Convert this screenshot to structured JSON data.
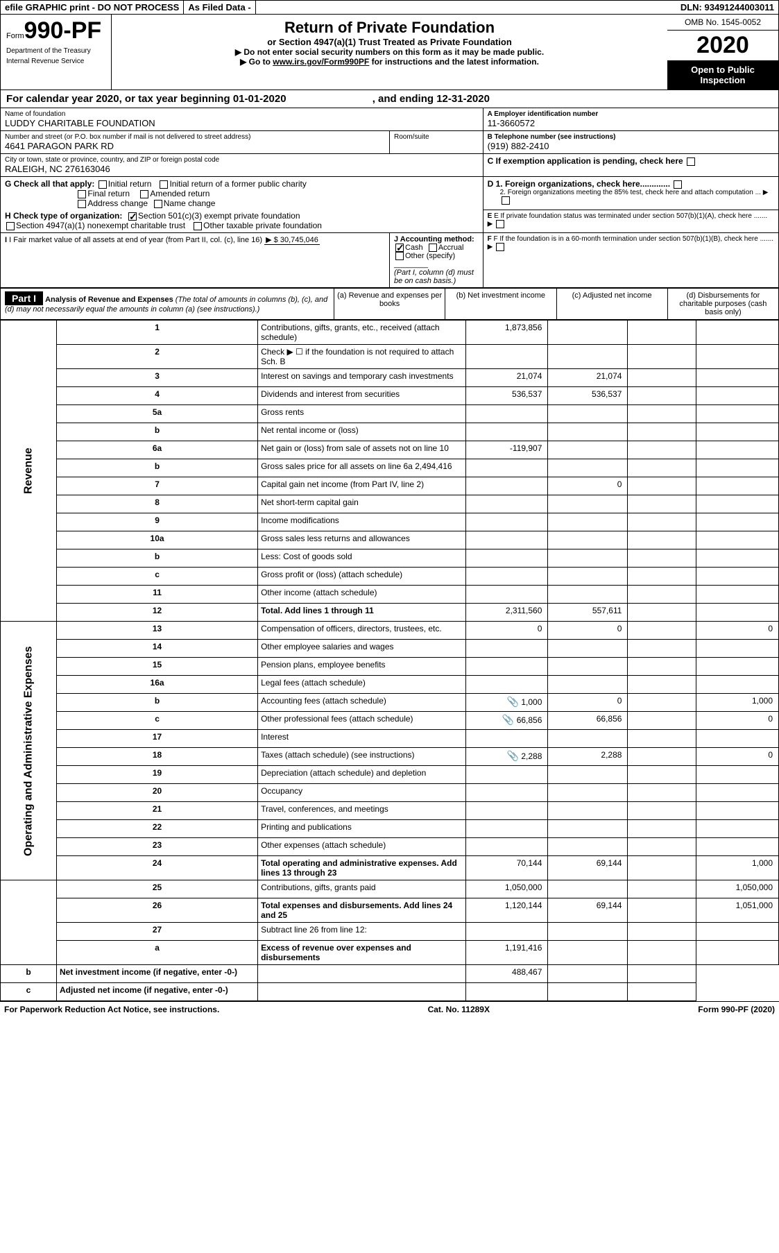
{
  "topBar": {
    "efile": "efile GRAPHIC print - DO NOT PROCESS",
    "asFiled": "As Filed Data -",
    "dln": "DLN: 93491244003011"
  },
  "header": {
    "formPrefix": "Form",
    "formNum": "990-PF",
    "dept1": "Department of the Treasury",
    "dept2": "Internal Revenue Service",
    "title": "Return of Private Foundation",
    "subtitle": "or Section 4947(a)(1) Trust Treated as Private Foundation",
    "note1": "▶ Do not enter social security numbers on this form as it may be made public.",
    "note2": "▶ Go to www.irs.gov/Form990PF for instructions and the latest information.",
    "omb": "OMB No. 1545-0052",
    "year": "2020",
    "inspect": "Open to Public Inspection"
  },
  "calYear": {
    "text1": "For calendar year 2020, or tax year beginning ",
    "begin": "01-01-2020",
    "text2": " , and ending ",
    "end": "12-31-2020"
  },
  "foundation": {
    "nameLbl": "Name of foundation",
    "name": "LUDDY CHARITABLE FOUNDATION",
    "aLbl": "A Employer identification number",
    "ein": "11-3660572",
    "addrLbl": "Number and street (or P.O. box number if mail is not delivered to street address)",
    "room": "Room/suite",
    "addr": "4641 PARAGON PARK RD",
    "bLbl": "B Telephone number (see instructions)",
    "phone": "(919) 882-2410",
    "cityLbl": "City or town, state or province, country, and ZIP or foreign postal code",
    "city": "RALEIGH, NC 276163046",
    "cLbl": "C If exemption application is pending, check here"
  },
  "checks": {
    "gLbl": "G Check all that apply:",
    "g1": "Initial return",
    "g2": "Initial return of a former public charity",
    "g3": "Final return",
    "g4": "Amended return",
    "g5": "Address change",
    "g6": "Name change",
    "hLbl": "H Check type of organization:",
    "h1": "Section 501(c)(3) exempt private foundation",
    "h2": "Section 4947(a)(1) nonexempt charitable trust",
    "h3": "Other taxable private foundation",
    "d1": "D 1. Foreign organizations, check here.............",
    "d2": "2. Foreign organizations meeting the 85% test, check here and attach computation ...",
    "eLbl": "E If private foundation status was terminated under section 507(b)(1)(A), check here .......",
    "iLbl": "I Fair market value of all assets at end of year (from Part II, col. (c), line 16)",
    "iVal": "▶ $ 30,745,046",
    "jLbl": "J Accounting method:",
    "j1": "Cash",
    "j2": "Accrual",
    "j3": "Other (specify)",
    "jNote": "(Part I, column (d) must be on cash basis.)",
    "fLbl": "F If the foundation is in a 60-month termination under section 507(b)(1)(B), check here ......."
  },
  "part1": {
    "header": "Part I",
    "title": "Analysis of Revenue and Expenses",
    "titleNote": "(The total of amounts in columns (b), (c), and (d) may not necessarily equal the amounts in column (a) (see instructions).)",
    "colA": "(a) Revenue and expenses per books",
    "colB": "(b) Net investment income",
    "colC": "(c) Adjusted net income",
    "colD": "(d) Disbursements for charitable purposes (cash basis only)",
    "sideRev": "Revenue",
    "sideExp": "Operating and Administrative Expenses"
  },
  "lines": [
    {
      "n": "1",
      "d": "",
      "a": "1,873,856",
      "b": "",
      "c": ""
    },
    {
      "n": "2",
      "d": "",
      "a": "",
      "b": "",
      "c": ""
    },
    {
      "n": "3",
      "d": "",
      "a": "21,074",
      "b": "21,074",
      "c": ""
    },
    {
      "n": "4",
      "d": "",
      "a": "536,537",
      "b": "536,537",
      "c": ""
    },
    {
      "n": "5a",
      "d": "",
      "a": "",
      "b": "",
      "c": ""
    },
    {
      "n": "b",
      "d": "",
      "a": "",
      "b": "",
      "c": ""
    },
    {
      "n": "6a",
      "d": "",
      "a": "-119,907",
      "b": "",
      "c": ""
    },
    {
      "n": "b",
      "d": "",
      "a": "",
      "b": "",
      "c": ""
    },
    {
      "n": "7",
      "d": "",
      "a": "",
      "b": "0",
      "c": ""
    },
    {
      "n": "8",
      "d": "",
      "a": "",
      "b": "",
      "c": ""
    },
    {
      "n": "9",
      "d": "",
      "a": "",
      "b": "",
      "c": ""
    },
    {
      "n": "10a",
      "d": "",
      "a": "",
      "b": "",
      "c": ""
    },
    {
      "n": "b",
      "d": "",
      "a": "",
      "b": "",
      "c": ""
    },
    {
      "n": "c",
      "d": "",
      "a": "",
      "b": "",
      "c": ""
    },
    {
      "n": "11",
      "d": "",
      "a": "",
      "b": "",
      "c": ""
    },
    {
      "n": "12",
      "d": "",
      "a": "2,311,560",
      "b": "557,611",
      "c": "",
      "bold": true
    },
    {
      "n": "13",
      "d": "0",
      "a": "0",
      "b": "0",
      "c": ""
    },
    {
      "n": "14",
      "d": "",
      "a": "",
      "b": "",
      "c": ""
    },
    {
      "n": "15",
      "d": "",
      "a": "",
      "b": "",
      "c": ""
    },
    {
      "n": "16a",
      "d": "",
      "a": "",
      "b": "",
      "c": ""
    },
    {
      "n": "b",
      "d": "1,000",
      "a": "1,000",
      "b": "0",
      "c": "",
      "icon": true
    },
    {
      "n": "c",
      "d": "0",
      "a": "66,856",
      "b": "66,856",
      "c": "",
      "icon": true
    },
    {
      "n": "17",
      "d": "",
      "a": "",
      "b": "",
      "c": ""
    },
    {
      "n": "18",
      "d": "0",
      "a": "2,288",
      "b": "2,288",
      "c": "",
      "icon": true
    },
    {
      "n": "19",
      "d": "",
      "a": "",
      "b": "",
      "c": ""
    },
    {
      "n": "20",
      "d": "",
      "a": "",
      "b": "",
      "c": ""
    },
    {
      "n": "21",
      "d": "",
      "a": "",
      "b": "",
      "c": ""
    },
    {
      "n": "22",
      "d": "",
      "a": "",
      "b": "",
      "c": ""
    },
    {
      "n": "23",
      "d": "",
      "a": "",
      "b": "",
      "c": ""
    },
    {
      "n": "24",
      "d": "1,000",
      "a": "70,144",
      "b": "69,144",
      "c": "",
      "bold": true
    },
    {
      "n": "25",
      "d": "1,050,000",
      "a": "1,050,000",
      "b": "",
      "c": ""
    },
    {
      "n": "26",
      "d": "1,051,000",
      "a": "1,120,144",
      "b": "69,144",
      "c": "",
      "bold": true
    },
    {
      "n": "27",
      "d": "",
      "a": "",
      "b": "",
      "c": ""
    },
    {
      "n": "a",
      "d": "",
      "a": "1,191,416",
      "b": "",
      "c": "",
      "bold": true
    },
    {
      "n": "b",
      "d": "",
      "a": "",
      "b": "488,467",
      "c": "",
      "bold": true
    },
    {
      "n": "c",
      "d": "",
      "a": "",
      "b": "",
      "c": "",
      "bold": true
    }
  ],
  "footer": {
    "left": "For Paperwork Reduction Act Notice, see instructions.",
    "mid": "Cat. No. 11289X",
    "right": "Form 990-PF (2020)"
  }
}
